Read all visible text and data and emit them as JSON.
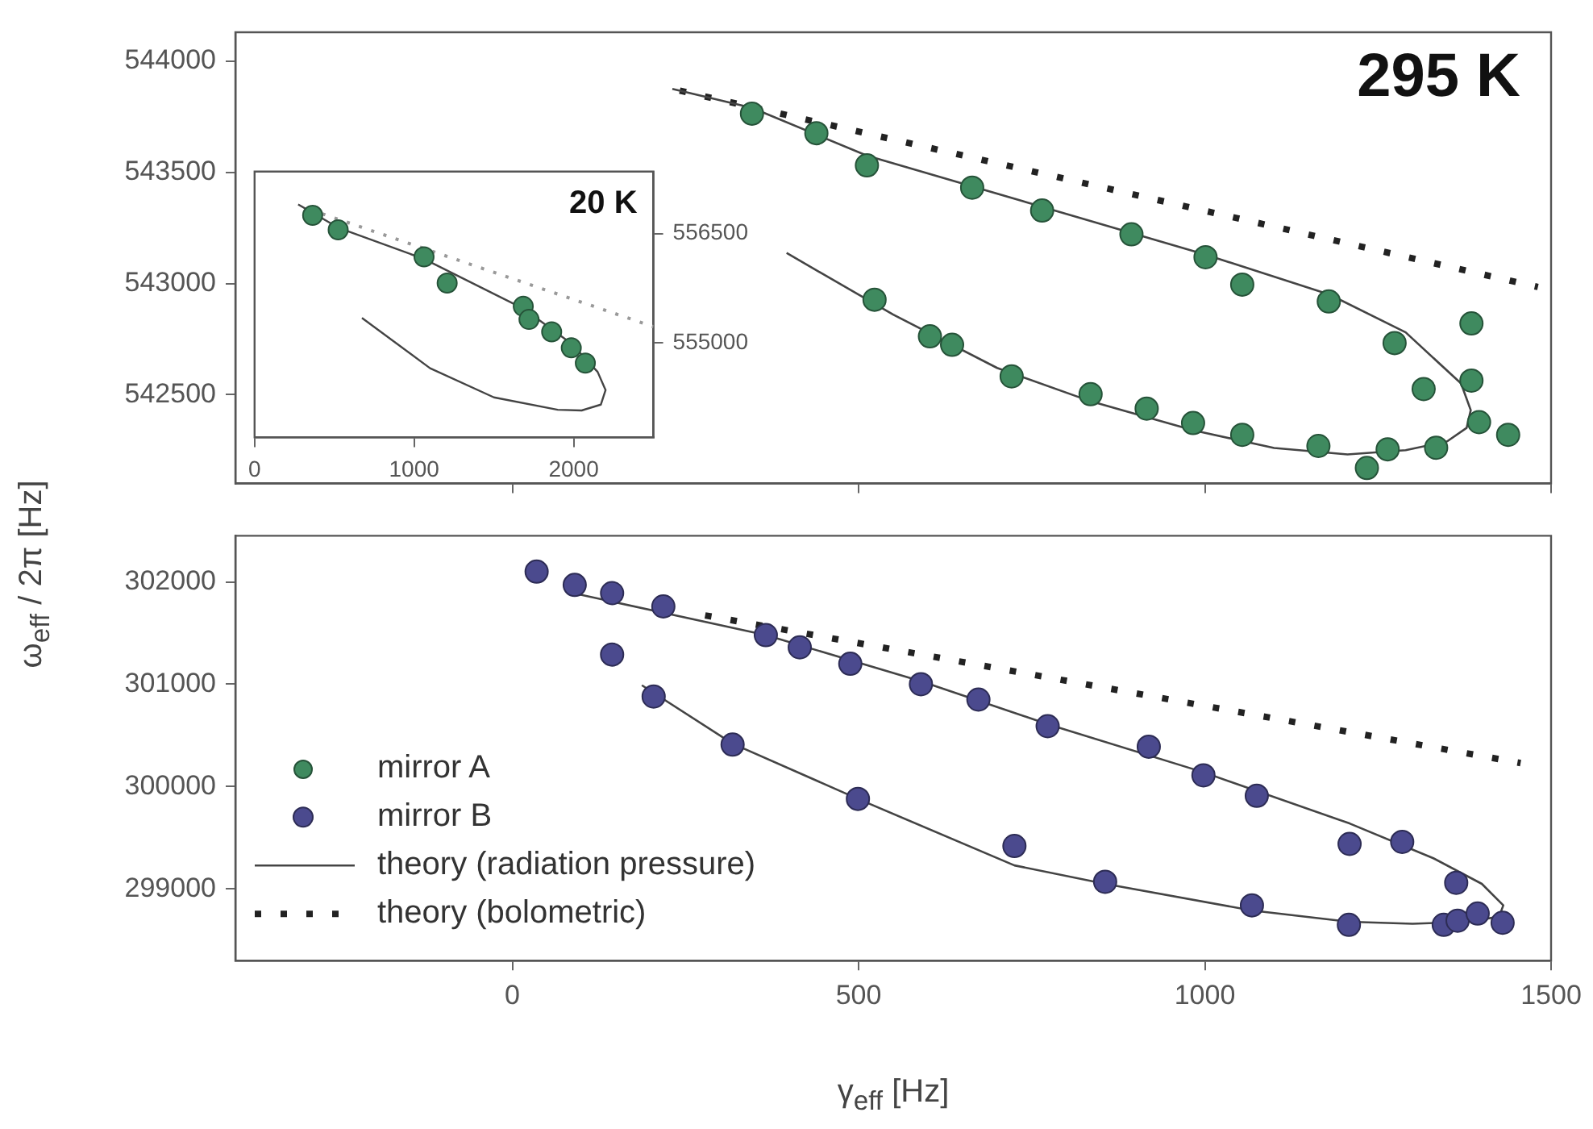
{
  "chart_data": [
    {
      "type": "scatter",
      "annotations": [
        "295 K"
      ],
      "xlim": [
        -400,
        1500
      ],
      "xticks": [
        0,
        500,
        1000,
        1500
      ],
      "ylim": [
        542100,
        544130
      ],
      "yticks": [
        542500,
        543000,
        543500,
        544000
      ],
      "grid": false,
      "tick_labels": "y",
      "series": [
        {
          "name": "mirror A",
          "marker": "circle",
          "color": "#3f8a5f",
          "x": [
            346,
            439,
            512,
            664,
            765,
            894,
            1001,
            1054,
            1179,
            1274,
            1385,
            1385,
            1316,
            1396,
            1438,
            523,
            603,
            635,
            721,
            835,
            916,
            983,
            1054,
            1164,
            1234,
            1264,
            1334
          ],
          "values": [
            543764,
            543676,
            543531,
            543431,
            543328,
            543221,
            543118,
            542995,
            542919,
            542732,
            542820,
            542563,
            542525,
            542376,
            542319,
            542927,
            542762,
            542724,
            542582,
            542502,
            542437,
            542372,
            542319,
            542269,
            542170,
            542254,
            542261
          ]
        },
        {
          "type": "line",
          "color": "#444444",
          "line_style": "solid",
          "x": [
            231,
            346,
            512,
            765,
            1001,
            1180,
            1290,
            1370,
            1384,
            1378,
            1350,
            1290,
            1206,
            1100,
            983,
            835,
            700,
            550,
            396
          ],
          "values": [
            543875,
            543790,
            543575,
            543345,
            543130,
            542950,
            542780,
            542550,
            542430,
            542350,
            542290,
            542250,
            542231,
            542260,
            542340,
            542470,
            542620,
            542860,
            543137
          ]
        },
        {
          "type": "line",
          "color": "#222222",
          "line_style": "dotted",
          "x": [
            231,
            1481
          ],
          "values": [
            543875,
            542984
          ]
        }
      ]
    },
    {
      "type": "scatter",
      "xlabel": "γ$_{eff}$ [Hz]",
      "ylabel": "ω$_{eff}$ / 2π [Hz]",
      "xlim": [
        -400,
        1500
      ],
      "xticks": [
        0,
        500,
        1000,
        1500
      ],
      "ylim": [
        298300,
        302450
      ],
      "yticks": [
        299000,
        300000,
        301000,
        302000
      ],
      "grid": false,
      "legend": "bottom left",
      "series": [
        {
          "name": "mirror B",
          "marker": "circle",
          "color": "#4b4a8e",
          "x": [
            35,
            90,
            144,
            218,
            366,
            415,
            488,
            590,
            673,
            773,
            919,
            998,
            1075,
            1209,
            1285,
            1363,
            144,
            204,
            318,
            499,
            725,
            856,
            1068,
            1208,
            1345,
            1365,
            1394,
            1430
          ],
          "values": [
            302100,
            301970,
            301890,
            301760,
            301480,
            301360,
            301200,
            301000,
            300850,
            300590,
            300390,
            300110,
            299910,
            299440,
            299460,
            299060,
            301290,
            300880,
            300410,
            299880,
            299420,
            299070,
            298840,
            298650,
            298650,
            298690,
            298760,
            298670
          ]
        },
        {
          "name": "theory (radiation pressure)",
          "type": "line",
          "color": "#444444",
          "line_style": "solid",
          "x": [
            88,
            366,
            590,
            773,
            998,
            1209,
            1330,
            1400,
            1431,
            1425,
            1380,
            1300,
            1208,
            1068,
            856,
            725,
            499,
            318,
            187
          ],
          "values": [
            301890,
            301480,
            301030,
            300610,
            300140,
            299640,
            299300,
            299050,
            298840,
            298730,
            298680,
            298660,
            298680,
            298790,
            299050,
            299230,
            299880,
            300420,
            300990
          ]
        },
        {
          "name": "theory (bolometric)",
          "type": "line",
          "color": "#222222",
          "line_style": "dotted",
          "x": [
            256,
            1456
          ],
          "values": [
            301700,
            300230
          ]
        }
      ]
    },
    {
      "type": "scatter",
      "annotations": [
        "20 K"
      ],
      "xlim": [
        0,
        2500
      ],
      "xticks": [
        0,
        1000,
        2000
      ],
      "y2lim": [
        553700,
        557350
      ],
      "y2ticks": [
        555000,
        556500
      ],
      "grid": false,
      "series": [
        {
          "axis": "y2",
          "marker": "circle",
          "color": "#3f8a5f",
          "x": [
            364,
            524,
            1062,
            1207,
            1684,
            1720,
            1862,
            1985,
            2073
          ],
          "values": [
            556750,
            556550,
            556180,
            555820,
            555500,
            555320,
            555150,
            554930,
            554720
          ]
        },
        {
          "type": "line",
          "axis": "y2",
          "color": "#444444",
          "line_style": "solid",
          "x": [
            273,
            524,
            1062,
            1684,
            1985,
            2150,
            2200,
            2170,
            2050,
            1900,
            1500,
            1100,
            673
          ],
          "values": [
            556900,
            556580,
            556150,
            555470,
            554990,
            554600,
            554350,
            554150,
            554070,
            554080,
            554250,
            554650,
            555340
          ]
        },
        {
          "type": "line",
          "axis": "y2",
          "color": "#999999",
          "line_style": "dotted",
          "x": [
            291,
            2500
          ],
          "values": [
            556870,
            555220
          ]
        }
      ]
    }
  ]
}
